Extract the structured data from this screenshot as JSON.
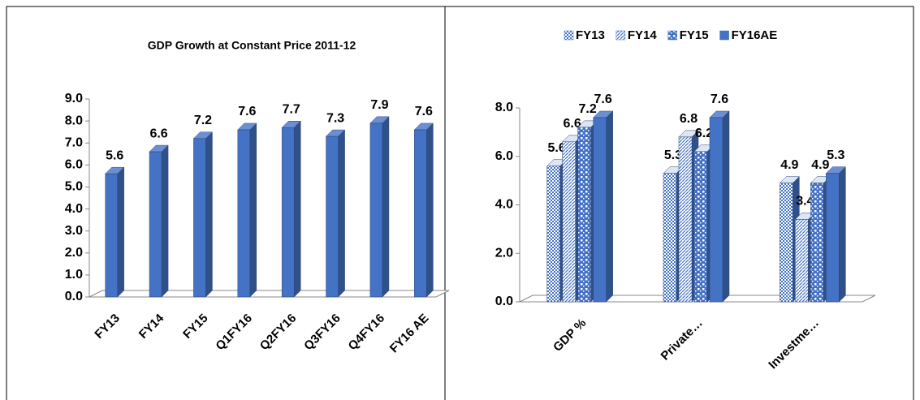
{
  "chart_data": [
    {
      "type": "bar",
      "title": "GDP Growth at Constant Price 2011-12",
      "categories": [
        "FY13",
        "FY14",
        "FY15",
        "Q1FY16",
        "Q2FY16",
        "Q3FY16",
        "Q4FY16",
        "FY16 AE"
      ],
      "values": [
        5.6,
        6.6,
        7.2,
        7.6,
        7.7,
        7.3,
        7.9,
        7.6
      ],
      "color": "#4472c4",
      "ylim": [
        0,
        9
      ],
      "yticks": [
        {
          "value": 0,
          "label": "0.0"
        },
        {
          "value": 1,
          "label": "1.0"
        },
        {
          "value": 2,
          "label": "2.0"
        },
        {
          "value": 3,
          "label": "3.0"
        },
        {
          "value": 4,
          "label": "4.0"
        },
        {
          "value": 5,
          "label": "5.0"
        },
        {
          "value": 6,
          "label": "6.0"
        },
        {
          "value": 7,
          "label": "7.0"
        },
        {
          "value": 8,
          "label": "8.0"
        },
        {
          "value": 9,
          "label": "9.0"
        }
      ]
    },
    {
      "type": "bar",
      "categories": [
        "GDP %",
        "Private…",
        "Investme…"
      ],
      "series": [
        {
          "name": "FY13",
          "color": "#4472c4",
          "pattern": "checker",
          "values": [
            5.6,
            5.3,
            4.9
          ]
        },
        {
          "name": "FY14",
          "color": "#4472c4",
          "pattern": "diagonal",
          "values": [
            6.6,
            6.8,
            3.4
          ]
        },
        {
          "name": "FY15",
          "color": "#4472c4",
          "pattern": "dotted",
          "values": [
            7.2,
            6.2,
            4.9
          ]
        },
        {
          "name": "FY16AE",
          "color": "#4472c4",
          "pattern": "solid",
          "values": [
            7.6,
            7.6,
            5.3
          ]
        }
      ],
      "ylim": [
        0,
        8
      ],
      "yticks": [
        {
          "value": 0,
          "label": "0.0"
        },
        {
          "value": 2,
          "label": "2.0"
        },
        {
          "value": 4,
          "label": "4.0"
        },
        {
          "value": 6,
          "label": "6.0"
        },
        {
          "value": 8,
          "label": "8.0"
        }
      ],
      "legend": "top"
    }
  ]
}
